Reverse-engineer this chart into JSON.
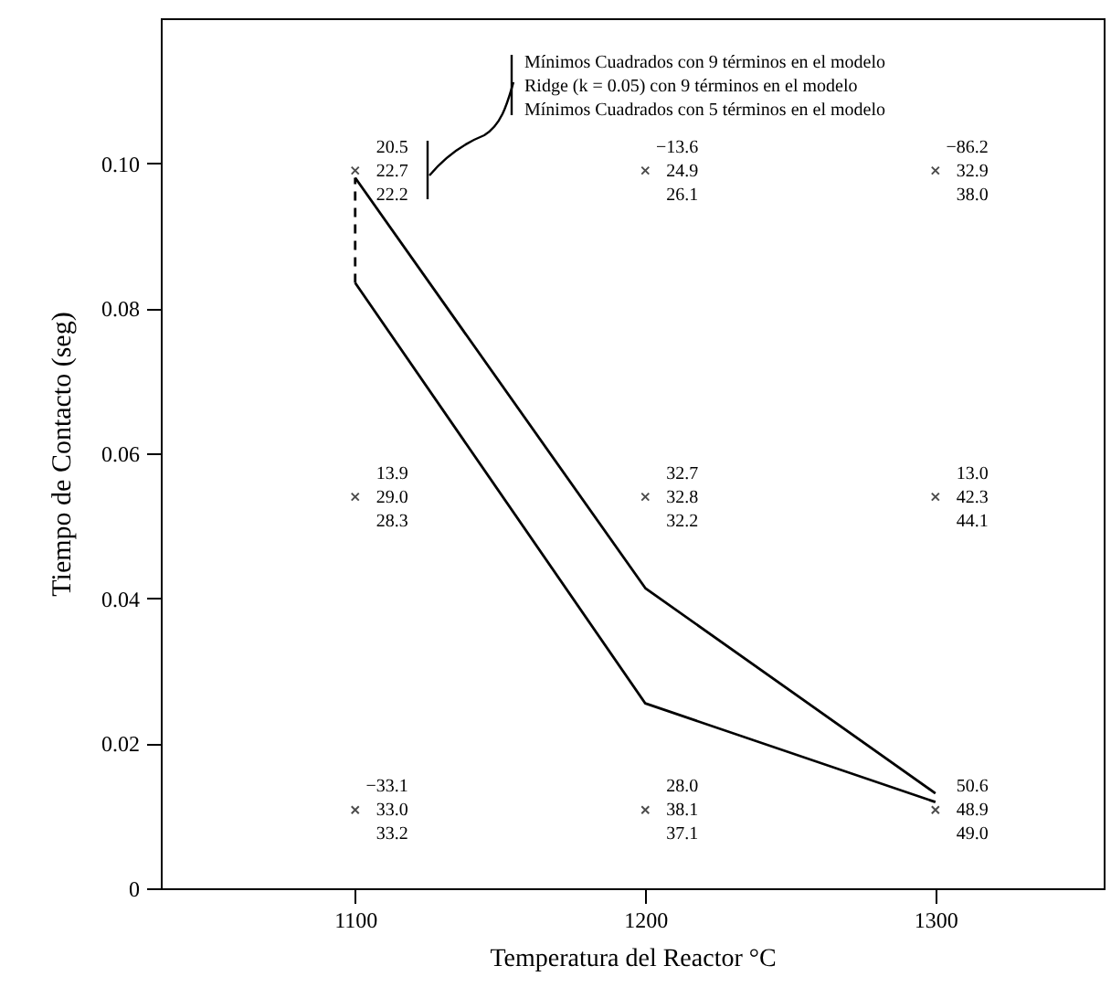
{
  "chart_data": {
    "type": "line",
    "xlabel": "Temperatura del Reactor °C",
    "ylabel": "Tiempo de Contacto (seg)",
    "xlim": [
      1033,
      1358
    ],
    "ylim": [
      0,
      0.12
    ],
    "xticks": [
      1100,
      1200,
      1300
    ],
    "yticks": [
      0,
      0.02,
      0.04,
      0.06,
      0.08,
      {
        "value": 0.1,
        "label": "0.10"
      }
    ],
    "series": [
      {
        "color": "#000000",
        "x": [
          1100,
          1200,
          1300
        ],
        "values": [
          0.098,
          0.0414,
          0.0131
        ]
      },
      {
        "color": "#000000",
        "x": [
          1100,
          1200,
          1300
        ],
        "values": [
          0.0835,
          0.0255,
          0.0119
        ]
      },
      {
        "color": "#000000",
        "line_style": "dashed",
        "x": [
          1100,
          1100
        ],
        "values": [
          0.0835,
          0.098
        ]
      },
      {
        "type": "scatter",
        "color": "#000000",
        "marker": "cross",
        "x": [
          1100,
          1200,
          1300,
          1100,
          1200,
          1300,
          1100,
          1200,
          1300
        ],
        "values": [
          0.099,
          0.099,
          0.099,
          0.054,
          0.054,
          0.054,
          0.0108,
          0.0108,
          0.0108
        ]
      }
    ],
    "annotations": [
      "Mínimos Cuadrados con 9 términos en el modelo",
      "Ridge (k = 0.05)  con 9 términos en el modelo",
      "Mínimos Cuadrados con 5 términos en el modelo",
      {
        "text": "20.5\n22.7\n22.2",
        "x": 1100,
        "y": 0.099
      },
      {
        "text": "−13.6\n24.9\n26.1",
        "x": 1200,
        "y": 0.099
      },
      {
        "text": "−86.2\n32.9\n38.0",
        "x": 1300,
        "y": 0.099
      },
      {
        "text": "13.9\n29.0\n28.3",
        "x": 1100,
        "y": 0.054
      },
      {
        "text": "32.7\n32.8\n32.2",
        "x": 1200,
        "y": 0.054
      },
      {
        "text": "13.0\n42.3\n44.1",
        "x": 1300,
        "y": 0.054
      },
      {
        "text": "−33.1\n33.0\n33.2",
        "x": 1100,
        "y": 0.0108
      },
      {
        "text": "28.0\n38.1\n37.1",
        "x": 1200,
        "y": 0.0108
      },
      {
        "text": "50.6\n48.9\n49.0",
        "x": 1300,
        "y": 0.0108
      }
    ]
  }
}
